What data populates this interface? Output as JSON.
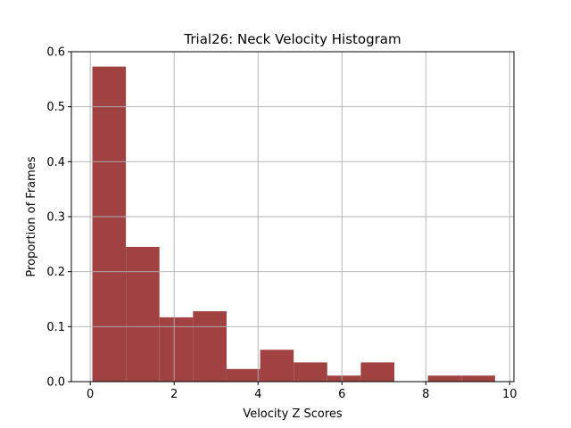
{
  "chart_data": {
    "type": "bar",
    "title": "Trial26: Neck Velocity Histogram",
    "xlabel": "Velocity Z Scores",
    "ylabel": "Proportion of Frames",
    "xlim": [
      -0.45,
      10.1
    ],
    "ylim": [
      0,
      0.6
    ],
    "grid": true,
    "bar_color": "#a04040",
    "xticks": [
      0,
      2,
      4,
      6,
      8,
      10
    ],
    "yticks": [
      0.0,
      0.1,
      0.2,
      0.3,
      0.4,
      0.5,
      0.6
    ],
    "xtick_labels": [
      "0",
      "2",
      "4",
      "6",
      "8",
      "10"
    ],
    "ytick_labels": [
      "0.0",
      "0.1",
      "0.2",
      "0.3",
      "0.4",
      "0.5",
      "0.6"
    ],
    "bin_edges": [
      0.05,
      0.85,
      1.65,
      2.45,
      3.25,
      4.05,
      4.85,
      5.65,
      6.45,
      7.25,
      8.05,
      8.85,
      9.65
    ],
    "values": [
      0.573,
      0.245,
      0.117,
      0.128,
      0.023,
      0.058,
      0.035,
      0.011,
      0.035,
      0.0,
      0.011,
      0.011
    ]
  }
}
